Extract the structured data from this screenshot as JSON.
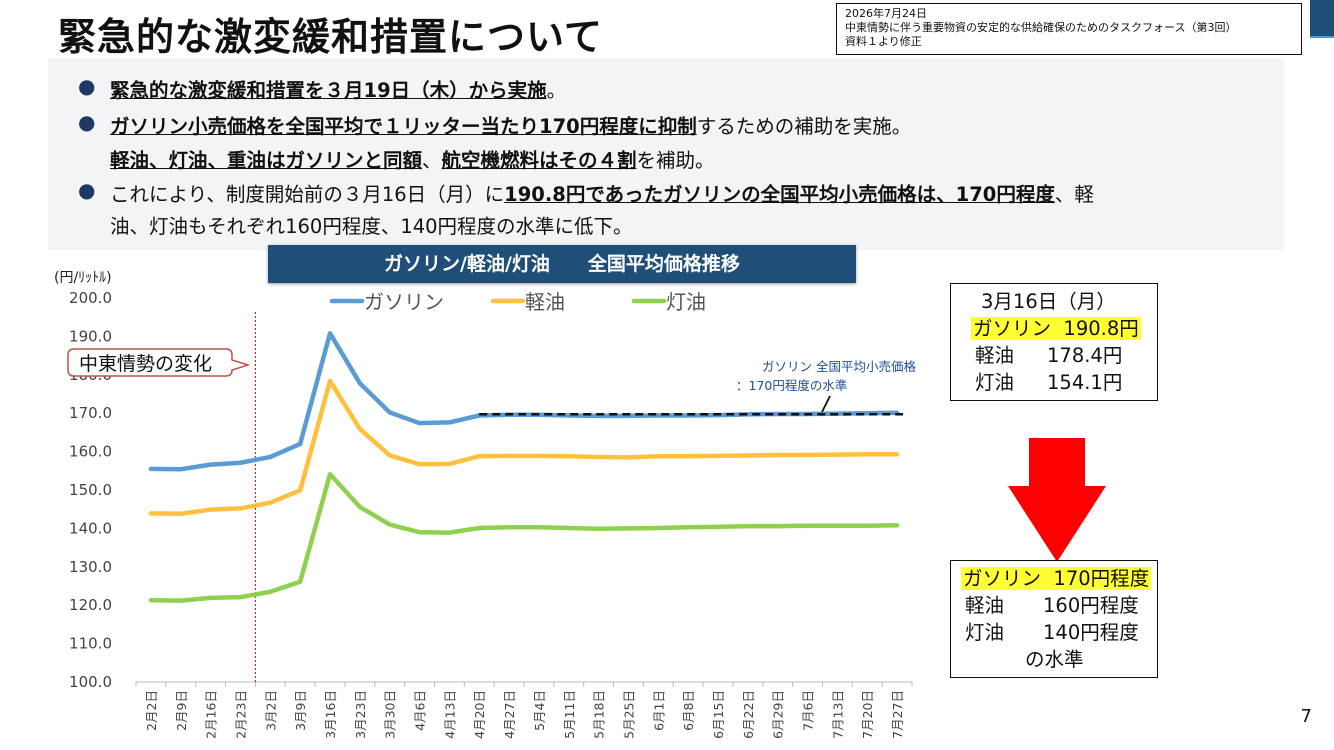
{
  "title": "緊急的な激変緩和措置について",
  "meta": {
    "date": "2026年7月24日",
    "line1": "中東情勢に伴う重要物資の安定的な供給確保のためのタスクフォース（第3回）",
    "line2": "資料１より修正"
  },
  "bullets": {
    "b1_bold": "緊急的な激変緩和措置を３月19日（木）から実施",
    "b1_tail": "。",
    "b2_bold": "ガソリン小売価格を全国平均で１リッター当たり170円程度に抑制",
    "b2_tail": "するための補助を実施。",
    "b2l2_bold1": "軽油、灯油、重油はガソリンと同額",
    "b2l2_mid": "、",
    "b2l2_bold2": "航空機燃料はその４割",
    "b2l2_tail": "を補助。",
    "b3_head": "これにより、制度開始前の３月16日（月）に",
    "b3_bold": "190.8円であったガソリンの全国平均小売価格は、170円程度",
    "b3_tail": "、軽",
    "b3_l2": "油、灯油もそれぞれ160円程度、140円程度の水準に低下。"
  },
  "chart_header": "ガソリン/軽油/灯油　　全国平均価格推移",
  "box_before": {
    "title": "3月16日（月）",
    "rows": [
      {
        "name": "ガソリン",
        "value": "190.8円"
      },
      {
        "name": "軽油",
        "value": "178.4円"
      },
      {
        "name": "灯油",
        "value": "154.1円"
      }
    ]
  },
  "box_after": {
    "rows": [
      {
        "name": "ガソリン",
        "value": "170円程度"
      },
      {
        "name": "軽油",
        "value": "160円程度"
      },
      {
        "name": "灯油",
        "value": "140円程度"
      }
    ],
    "tail": "の水準"
  },
  "arrow_color": "#ff0000",
  "page_number": "7",
  "chart_data": {
    "type": "line",
    "ylabel": "(円/ﾘｯﾄﾙ)",
    "ylim": [
      100,
      200
    ],
    "yticks": [
      "100.0",
      "110.0",
      "120.0",
      "130.0",
      "140.0",
      "150.0",
      "160.0",
      "170.0",
      "180.0",
      "190.0",
      "200.0"
    ],
    "categories": [
      "2月2日",
      "2月9日",
      "2月16日",
      "2月23日",
      "3月2日",
      "3月9日",
      "3月16日",
      "3月23日",
      "3月30日",
      "4月6日",
      "4月13日",
      "4月20日",
      "4月27日",
      "5月4日",
      "5月11日",
      "5月18日",
      "5月25日",
      "6月1日",
      "6月8日",
      "6月15日",
      "6月22日",
      "6月29日",
      "7月6日",
      "7月13日",
      "7月20日",
      "7月27日"
    ],
    "series": [
      {
        "name": "ガソリン",
        "color": "#5b9bd5",
        "values": [
          155.5,
          155.4,
          156.6,
          157.1,
          158.6,
          162.0,
          190.8,
          177.8,
          170.2,
          167.4,
          167.6,
          169.4,
          169.6,
          169.6,
          169.4,
          169.3,
          169.3,
          169.4,
          169.4,
          169.5,
          169.7,
          169.8,
          169.8,
          169.9,
          170.0,
          170.1
        ]
      },
      {
        "name": "軽油",
        "color": "#ffc03d",
        "values": [
          143.9,
          143.8,
          144.9,
          145.2,
          146.7,
          149.9,
          178.4,
          165.9,
          159.0,
          156.7,
          156.8,
          158.8,
          158.9,
          158.9,
          158.8,
          158.6,
          158.5,
          158.8,
          158.8,
          158.9,
          159.0,
          159.1,
          159.1,
          159.2,
          159.3,
          159.3
        ]
      },
      {
        "name": "灯油",
        "color": "#8fd14f",
        "values": [
          121.3,
          121.2,
          121.9,
          122.1,
          123.5,
          126.1,
          154.1,
          145.6,
          141.0,
          139.0,
          138.9,
          140.1,
          140.3,
          140.3,
          140.1,
          139.9,
          140.0,
          140.1,
          140.3,
          140.4,
          140.6,
          140.6,
          140.7,
          140.7,
          140.7,
          140.8
        ]
      }
    ],
    "target_line": {
      "value": 170,
      "from": "4月20日",
      "to": "7月27日"
    },
    "annotations": {
      "event_label": "中東情勢の変化",
      "event_between": [
        "2月23日",
        "3月2日"
      ],
      "target_label1": "ガソリン 全国平均小売価格",
      "target_label2": "：170円程度の水準"
    },
    "legend": "top"
  }
}
